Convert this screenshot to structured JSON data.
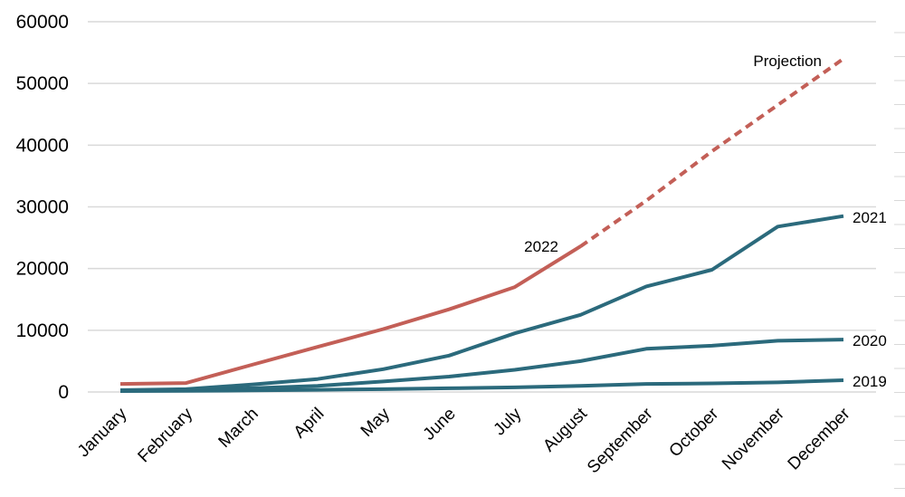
{
  "chart_data": {
    "type": "line",
    "categories": [
      "January",
      "February",
      "March",
      "April",
      "May",
      "June",
      "July",
      "August",
      "September",
      "October",
      "November",
      "December"
    ],
    "ylim": [
      0,
      60000
    ],
    "yticks": [
      0,
      10000,
      20000,
      30000,
      40000,
      50000,
      60000
    ],
    "grid": true,
    "series": [
      {
        "name": "2019",
        "color": "#2b6a7c",
        "values": [
          150,
          180,
          250,
          350,
          450,
          600,
          750,
          1000,
          1300,
          1400,
          1550,
          1900
        ]
      },
      {
        "name": "2020",
        "color": "#2b6a7c",
        "values": [
          200,
          350,
          600,
          1000,
          1700,
          2500,
          3600,
          5000,
          7000,
          7500,
          8300,
          8500
        ]
      },
      {
        "name": "2021",
        "color": "#2b6a7c",
        "values": [
          300,
          450,
          1200,
          2100,
          3700,
          5900,
          9500,
          12500,
          17100,
          19800,
          26800,
          28500
        ]
      },
      {
        "name": "2022",
        "color": "#c35f57",
        "values": [
          1300,
          1450,
          4400,
          7300,
          10200,
          13400,
          17000,
          23600,
          null,
          null,
          null,
          null
        ]
      },
      {
        "name": "Projection",
        "color": "#c35f57",
        "dashed": true,
        "values": [
          null,
          null,
          null,
          null,
          null,
          null,
          null,
          23600,
          31000,
          39000,
          46500,
          54000
        ]
      }
    ]
  }
}
